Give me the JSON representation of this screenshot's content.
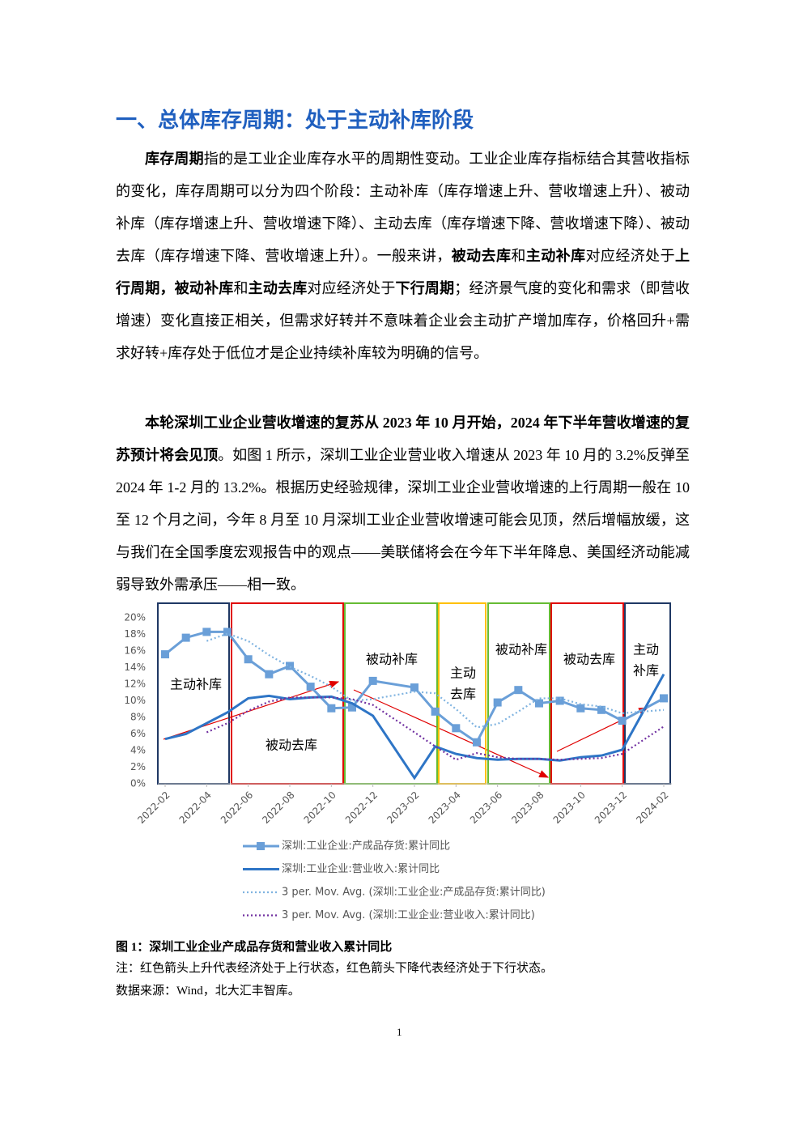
{
  "heading": "一、总体库存周期：处于主动补库阶段",
  "paragraphs": [
    {
      "runs": [
        {
          "text": "库存周期",
          "bold": true
        },
        {
          "text": "指的是工业企业库存水平的周期性变动。工业企业库存指标结合其营收指标的变化，库存周期可以分为四个阶段：主动补库（库存增速上升、营收增速上升）、被动补库（库存增速上升、营收增速下降）、主动去库（库存增速下降、营收增速下降）、被动去库（库存增速下降、营收增速上升）。一般来讲，",
          "bold": false
        },
        {
          "text": "被动去库",
          "bold": true
        },
        {
          "text": "和",
          "bold": false
        },
        {
          "text": "主动补库",
          "bold": true
        },
        {
          "text": "对应经济处于",
          "bold": false
        },
        {
          "text": "上行周期，被动补库",
          "bold": true
        },
        {
          "text": "和",
          "bold": false
        },
        {
          "text": "主动去库",
          "bold": true
        },
        {
          "text": "对应经济处于",
          "bold": false
        },
        {
          "text": "下行周期",
          "bold": true
        },
        {
          "text": "；经济景气度的变化和需求（即营收增速）变化直接正相关，但需求好转并不意味着企业会主动扩产增加库存，价格回升+需求好转+库存处于低位才是企业持续补库较为明确的信号。",
          "bold": false
        }
      ]
    },
    {
      "runs": [
        {
          "text": "本轮深圳工业企业营收增速的复苏从 2023 年 10 月开始，2024 年下半年营收增速的复苏预计将会见顶",
          "bold": true
        },
        {
          "text": "。如图 1 所示，深圳工业企业营业收入增速从 2023 年 10 月的 3.2%反弹至 2024 年 1-2 月的 13.2%。根据历史经验规律，深圳工业企业营收增速的上行周期一般在 10 至 12 个月之间，今年 8 月至 10 月深圳工业企业营收增速可能会见顶，然后增幅放缓，这与我们在全国季度宏观报告中的观点——美联储将会在今年下半年降息、美国经济动能减弱导致外需承压——相一致。",
          "bold": false
        }
      ]
    }
  ],
  "chart_data": {
    "type": "line",
    "grid": false,
    "x": [
      "2022-02",
      "2022-03",
      "2022-04",
      "2022-05",
      "2022-06",
      "2022-07",
      "2022-08",
      "2022-09",
      "2022-10",
      "2022-11",
      "2022-12",
      "2023-02",
      "2023-03",
      "2023-04",
      "2023-05",
      "2023-06",
      "2023-07",
      "2023-08",
      "2023-09",
      "2023-10",
      "2023-11",
      "2023-12",
      "2024-02"
    ],
    "xticks": [
      "2022-02",
      "2022-04",
      "2022-06",
      "2022-08",
      "2022-10",
      "2022-12",
      "2023-02",
      "2023-04",
      "2023-06",
      "2023-08",
      "2023-10",
      "2023-12",
      "2024-02"
    ],
    "ylim": [
      0,
      20
    ],
    "yticks": [
      {
        "value": 0,
        "label": "0%"
      },
      {
        "value": 2,
        "label": "2%"
      },
      {
        "value": 4,
        "label": "4%"
      },
      {
        "value": 6,
        "label": "6%"
      },
      {
        "value": 8,
        "label": "8%"
      },
      {
        "value": 10,
        "label": "10%"
      },
      {
        "value": 12,
        "label": "12%"
      },
      {
        "value": 14,
        "label": "14%"
      },
      {
        "value": 16,
        "label": "16%"
      },
      {
        "value": 18,
        "label": "18%"
      },
      {
        "value": 20,
        "label": "20%"
      }
    ],
    "series": [
      {
        "name": "深圳:工业企业:产成品存货:累计同比",
        "color": "#6a9fd8",
        "style": "marker",
        "values": [
          15.6,
          17.6,
          18.3,
          18.3,
          15.0,
          13.2,
          14.2,
          11.7,
          9.1,
          9.2,
          12.4,
          11.6,
          8.7,
          6.7,
          5.0,
          9.8,
          11.3,
          9.7,
          10.0,
          9.1,
          8.9,
          7.6,
          10.3
        ]
      },
      {
        "name": "深圳:工业企业:营业收入:累计同比",
        "color": "#2e75c6",
        "style": "solid",
        "values": [
          5.4,
          6.0,
          7.3,
          8.6,
          10.3,
          10.6,
          10.2,
          10.4,
          10.5,
          9.7,
          8.2,
          0.7,
          4.5,
          3.6,
          3.1,
          2.9,
          3.0,
          3.0,
          2.8,
          3.2,
          3.4,
          4.1,
          13.2
        ]
      },
      {
        "name": "3 per. Mov. Avg. (深圳:工业企业:产成品存货:累计同比)",
        "color": "#7fb3e0",
        "style": "dotted",
        "values": [
          null,
          null,
          17.2,
          18.1,
          17.2,
          15.5,
          14.1,
          13.0,
          11.7,
          10.0,
          10.2,
          11.1,
          10.9,
          9.0,
          6.8,
          7.2,
          8.7,
          10.3,
          10.3,
          9.6,
          9.3,
          8.5,
          8.9
        ]
      },
      {
        "name": "3 per. Mov. Avg. (深圳:工业企业:营业收入:累计同比)",
        "color": "#7030a0",
        "style": "dotted",
        "values": [
          null,
          null,
          6.2,
          7.3,
          8.8,
          9.9,
          10.4,
          10.4,
          10.4,
          10.2,
          9.5,
          6.2,
          4.5,
          2.9,
          3.7,
          3.2,
          3.0,
          3.0,
          2.9,
          3.0,
          3.1,
          3.6,
          6.9
        ]
      }
    ],
    "regions": [
      {
        "lines": [
          "主动补库"
        ],
        "color": "#1f3864"
      },
      {
        "lines": [
          "被动去库"
        ],
        "color": "#e00000"
      },
      {
        "lines": [
          "被动补库"
        ],
        "color": "#66bb33"
      },
      {
        "lines": [
          "主动",
          "去库"
        ],
        "color": "#ffc000"
      },
      {
        "lines": [
          "被动补库"
        ],
        "color": "#66bb33"
      },
      {
        "lines": [
          "被动去库"
        ],
        "color": "#e00000"
      },
      {
        "lines": [
          "主动",
          "补库"
        ],
        "color": "#1f3864"
      }
    ]
  },
  "caption": "图 1：深圳工业企业产成品存货和营业收入累计同比",
  "note": "注：红色箭头上升代表经济处于上行状态，红色箭头下降代表经济处于下行状态。",
  "source": "数据来源：Wind，北大汇丰智库。",
  "page_number": "1"
}
